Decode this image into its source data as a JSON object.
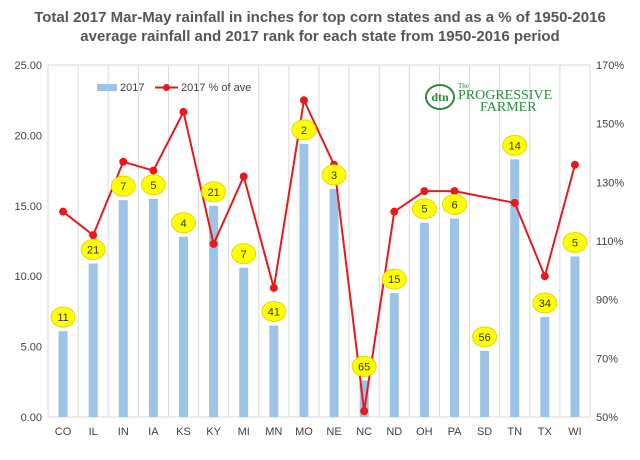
{
  "chart_data": {
    "type": "bar",
    "title_line1": "Total 2017 Mar-May rainfall in inches for top corn states and as a % of 1950-2016",
    "title_line2": "average rainfall and 2017 rank for each state from 1950-2016 period",
    "categories": [
      "CO",
      "IL",
      "IN",
      "IA",
      "KS",
      "KY",
      "MI",
      "MN",
      "MO",
      "NE",
      "NC",
      "ND",
      "OH",
      "PA",
      "SD",
      "TN",
      "TX",
      "WI"
    ],
    "series": [
      {
        "name": "2017",
        "type": "bar",
        "axis": "left",
        "color": "#9dc3e6",
        "values": [
          6.1,
          10.9,
          15.4,
          15.5,
          12.8,
          15.0,
          10.6,
          6.5,
          19.4,
          16.2,
          2.6,
          8.8,
          13.8,
          14.1,
          4.7,
          18.3,
          7.1,
          11.4
        ]
      },
      {
        "name": "2017  % of ave",
        "type": "line",
        "axis": "right",
        "color": "#e8191b",
        "values": [
          120,
          112,
          137,
          134,
          154,
          109,
          132,
          94,
          158,
          136,
          52,
          120,
          127,
          127,
          null,
          123,
          98,
          136
        ]
      }
    ],
    "ranks": [
      "11",
      "21",
      "7",
      "5",
      "4",
      "21",
      "7",
      "41",
      "2",
      "3",
      "65",
      "15",
      "5",
      "6",
      "56",
      "14",
      "34",
      "5"
    ],
    "y_left": {
      "min": 0,
      "max": 25,
      "ticks": [
        "0.00",
        "5.00",
        "10.00",
        "15.00",
        "20.00",
        "25.00"
      ]
    },
    "y_right": {
      "min": 50,
      "max": 170,
      "ticks": [
        "50%",
        "70%",
        "90%",
        "110%",
        "130%",
        "150%",
        "170%"
      ]
    },
    "grid": "vertical",
    "legend": "top-left"
  },
  "logo": {
    "mark": "dtn",
    "name_line1": "PROGRESSIVE",
    "name_line2": "FARMER",
    "the": "The"
  },
  "colors": {
    "bar": "#9dc3e6",
    "line": "#e8191b",
    "rank_bubble": "#ffff00",
    "grid": "#d9d9d9",
    "title": "#555555"
  }
}
